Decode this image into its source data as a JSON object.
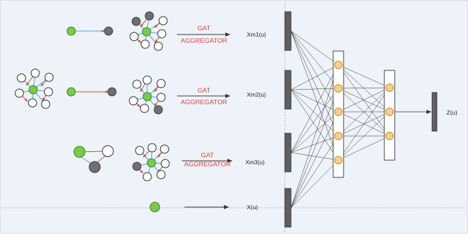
{
  "canvas": {
    "background": "#eef3f9",
    "border": "#d7dee8",
    "divider": "#9aa6b4"
  },
  "colors": {
    "green": "#79cc47",
    "green_stroke": "#3a7b28",
    "gray": "#6d6f72",
    "gray_stroke": "#3b3d3f",
    "white": "#ffffff",
    "white_stroke": "#2b2d2f",
    "blue_edge": "#4aa3e0",
    "red_edge": "#cf4d45",
    "orange": "#f6d187",
    "orange_stroke": "#c98b2a",
    "bar": "#5d5f63",
    "bar_stroke": "#2d2f33",
    "text_red": "#e0453a",
    "text_dark": "#222222",
    "arrow": "#333333"
  },
  "rows": [
    {
      "gat_label": "GAT",
      "aggregator_label": "AGGREGATOR",
      "output_label": "Xm1(u)"
    },
    {
      "gat_label": "GAT",
      "aggregator_label": "AGGREGATOR",
      "output_label": "Xm2(u)"
    },
    {
      "gat_label": "GAT",
      "aggregator_label": "AGGREGATOR",
      "output_label": "Xm3(u)"
    }
  ],
  "self_feature_label": "X(u)",
  "final_output_label": "Z(u)",
  "network": {
    "input_bars": 4,
    "hidden1_nodes": 5,
    "hidden2_nodes": 3,
    "output_bars": 1
  }
}
